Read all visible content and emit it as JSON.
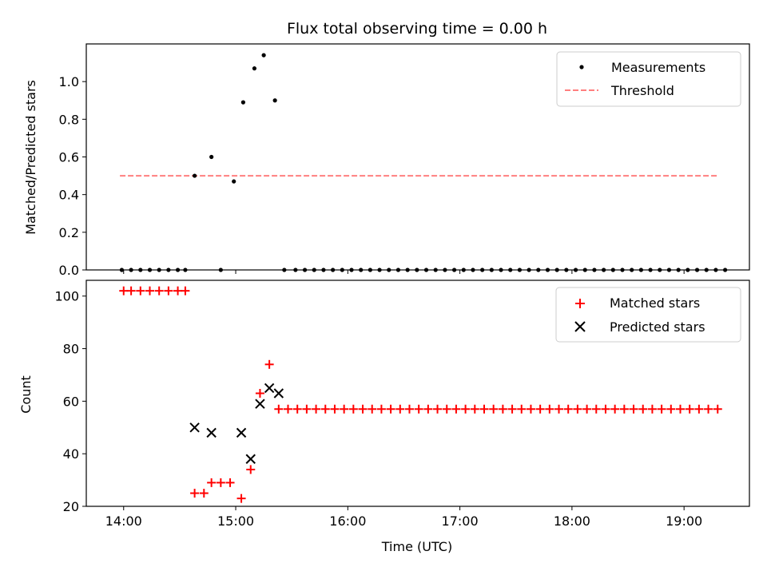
{
  "chart_data": [
    {
      "type": "scatter",
      "title": "Flux total observing time = 0.00 h",
      "xlabel": "",
      "ylabel": "Matched/Predicted stars",
      "xlim": [
        "13:40",
        "19:35"
      ],
      "ylim": [
        0,
        1.2
      ],
      "yticks": [
        0.0,
        0.2,
        0.4,
        0.6,
        0.8,
        1.0
      ],
      "ytick_labels": [
        "0.0",
        "0.2",
        "0.4",
        "0.6",
        "0.8",
        "1.0"
      ],
      "xticks": [
        "14:00",
        "15:00",
        "16:00",
        "17:00",
        "18:00",
        "19:00"
      ],
      "x_tick_labels_shown": false,
      "grid": false,
      "legend": {
        "position": "top-right",
        "entries": [
          "Measurements",
          "Threshold"
        ]
      },
      "colors": {
        "measurements": "#000000",
        "threshold": "#ff7f7f"
      },
      "series": [
        {
          "name": "Measurements",
          "style": "dot",
          "x": [
            "13:59",
            "14:04",
            "14:09",
            "14:14",
            "14:19",
            "14:24",
            "14:29",
            "14:33",
            "14:38",
            "14:47",
            "14:52",
            "14:59",
            "15:04",
            "15:10",
            "15:15",
            "15:21",
            "15:26",
            "15:32",
            "15:37",
            "15:42",
            "15:47",
            "15:52",
            "15:57",
            "16:02",
            "16:07",
            "16:12",
            "16:17",
            "16:22",
            "16:27",
            "16:32",
            "16:37",
            "16:42",
            "16:47",
            "16:52",
            "16:57",
            "17:02",
            "17:07",
            "17:12",
            "17:17",
            "17:22",
            "17:27",
            "17:32",
            "17:37",
            "17:42",
            "17:47",
            "17:52",
            "17:57",
            "18:02",
            "18:07",
            "18:12",
            "18:17",
            "18:22",
            "18:27",
            "18:32",
            "18:37",
            "18:42",
            "18:47",
            "18:52",
            "18:57",
            "19:02",
            "19:07",
            "19:12",
            "19:17",
            "19:22"
          ],
          "y": [
            0,
            0,
            0,
            0,
            0,
            0,
            0,
            0,
            0.5,
            0.6,
            0,
            0.47,
            0.89,
            1.07,
            1.14,
            0.9,
            0,
            0,
            0,
            0,
            0,
            0,
            0,
            0,
            0,
            0,
            0,
            0,
            0,
            0,
            0,
            0,
            0,
            0,
            0,
            0,
            0,
            0,
            0,
            0,
            0,
            0,
            0,
            0,
            0,
            0,
            0,
            0,
            0,
            0,
            0,
            0,
            0,
            0,
            0,
            0,
            0,
            0,
            0,
            0,
            0,
            0,
            0,
            0
          ]
        },
        {
          "name": "Threshold",
          "style": "dashed-line",
          "x": [
            "13:58",
            "19:18"
          ],
          "y": [
            0.5,
            0.5
          ]
        }
      ]
    },
    {
      "type": "scatter",
      "title": "",
      "xlabel": "Time (UTC)",
      "ylabel": "Count",
      "xlim": [
        "13:40",
        "19:35"
      ],
      "ylim": [
        20,
        106
      ],
      "yticks": [
        20,
        40,
        60,
        80,
        100
      ],
      "ytick_labels": [
        "20",
        "40",
        "60",
        "80",
        "100"
      ],
      "xticks": [
        "14:00",
        "15:00",
        "16:00",
        "17:00",
        "18:00",
        "19:00"
      ],
      "xtick_labels": [
        "14:00",
        "15:00",
        "16:00",
        "17:00",
        "18:00",
        "19:00"
      ],
      "grid": false,
      "legend": {
        "position": "top-right",
        "entries": [
          "Matched stars",
          "Predicted stars"
        ]
      },
      "colors": {
        "matched": "#ff0000",
        "predicted": "#000000"
      },
      "series": [
        {
          "name": "Matched stars",
          "marker": "plus",
          "x": [
            "14:00",
            "14:04",
            "14:09",
            "14:14",
            "14:19",
            "14:24",
            "14:29",
            "14:33",
            "14:38",
            "14:43",
            "14:47",
            "14:52",
            "14:57",
            "15:03",
            "15:08",
            "15:13",
            "15:18",
            "15:23",
            "15:28",
            "15:33",
            "15:38",
            "15:43",
            "15:48",
            "15:53",
            "15:58",
            "16:03",
            "16:08",
            "16:13",
            "16:18",
            "16:23",
            "16:28",
            "16:33",
            "16:38",
            "16:43",
            "16:48",
            "16:53",
            "16:58",
            "17:03",
            "17:08",
            "17:13",
            "17:18",
            "17:23",
            "17:28",
            "17:33",
            "17:38",
            "17:43",
            "17:48",
            "17:53",
            "17:58",
            "18:03",
            "18:08",
            "18:13",
            "18:18",
            "18:23",
            "18:28",
            "18:33",
            "18:38",
            "18:43",
            "18:48",
            "18:53",
            "18:58",
            "19:03",
            "19:08",
            "19:13",
            "19:18"
          ],
          "y": [
            102,
            102,
            102,
            102,
            102,
            102,
            102,
            102,
            25,
            25,
            29,
            29,
            29,
            23,
            34,
            63,
            74,
            57,
            57,
            57,
            57,
            57,
            57,
            57,
            57,
            57,
            57,
            57,
            57,
            57,
            57,
            57,
            57,
            57,
            57,
            57,
            57,
            57,
            57,
            57,
            57,
            57,
            57,
            57,
            57,
            57,
            57,
            57,
            57,
            57,
            57,
            57,
            57,
            57,
            57,
            57,
            57,
            57,
            57,
            57,
            57,
            57,
            57,
            57,
            57
          ]
        },
        {
          "name": "Predicted stars",
          "marker": "x",
          "x": [
            "14:38",
            "14:47",
            "15:03",
            "15:08",
            "15:13",
            "15:18",
            "15:23"
          ],
          "y": [
            50,
            48,
            48,
            38,
            59,
            65,
            63
          ]
        }
      ]
    }
  ]
}
